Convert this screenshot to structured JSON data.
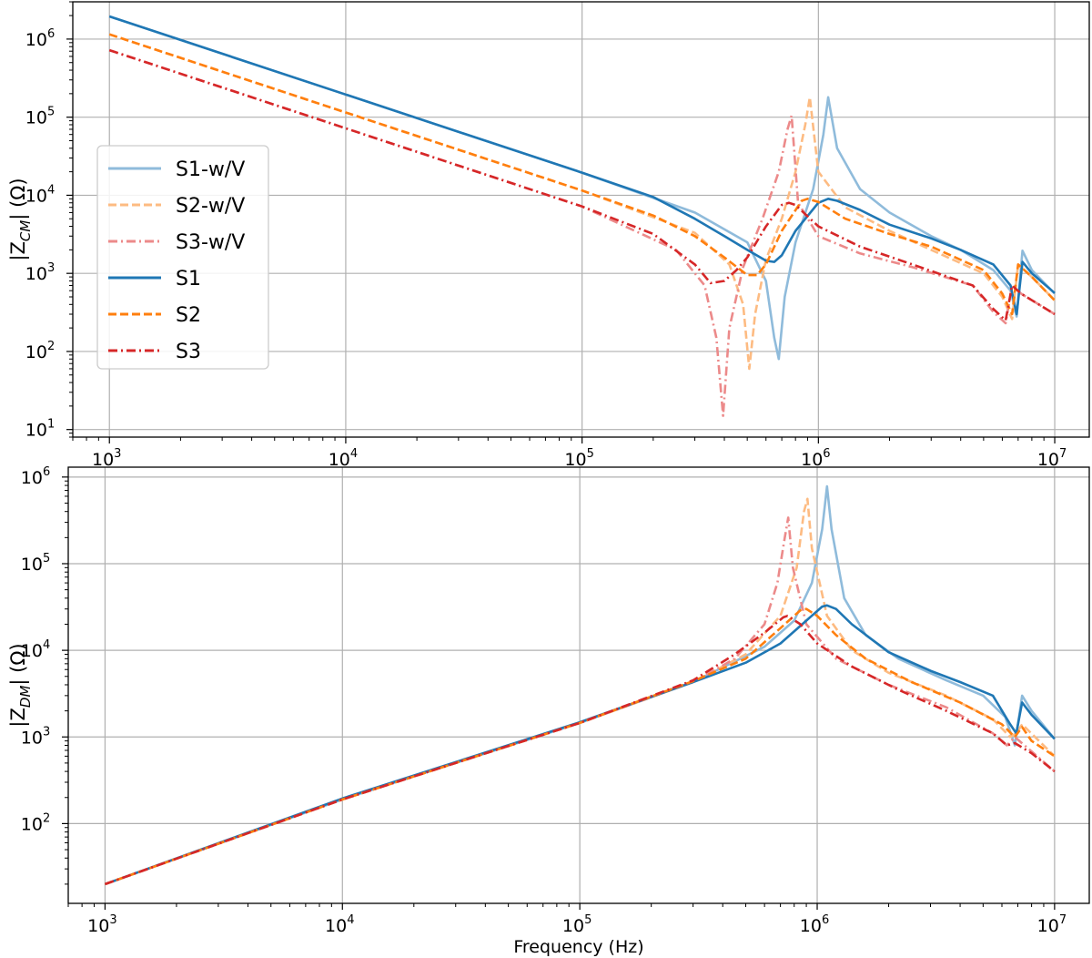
{
  "chart_data": [
    {
      "type": "line",
      "panel": "top",
      "ylabel_main": "|Z",
      "ylabel_sub": "CM",
      "ylabel_tail": "| (Ω)",
      "xlabel": "",
      "x_scale": "log",
      "y_scale": "log",
      "xlim": [
        700,
        14000000
      ],
      "ylim": [
        8,
        3000000
      ],
      "xticks": [
        {
          "value": 1000,
          "base": "10",
          "exp": "3"
        },
        {
          "value": 10000,
          "base": "10",
          "exp": "4"
        },
        {
          "value": 100000,
          "base": "10",
          "exp": "5"
        },
        {
          "value": 1000000,
          "base": "10",
          "exp": "6"
        },
        {
          "value": 10000000,
          "base": "10",
          "exp": "7"
        }
      ],
      "yticks": [
        {
          "value": 10,
          "base": "10",
          "exp": "1"
        },
        {
          "value": 100,
          "base": "10",
          "exp": "2"
        },
        {
          "value": 1000,
          "base": "10",
          "exp": "3"
        },
        {
          "value": 10000,
          "base": "10",
          "exp": "4"
        },
        {
          "value": 100000,
          "base": "10",
          "exp": "5"
        },
        {
          "value": 1000000,
          "base": "10",
          "exp": "6"
        }
      ],
      "grid": true,
      "legend_location": "center-left",
      "series": [
        {
          "name": "S1-w/V",
          "color": "#8fbbdb",
          "dash": "solid",
          "x": [
            1000,
            10000,
            100000,
            300000,
            500000,
            600000,
            650000,
            680000,
            720000,
            800000,
            950000,
            1050000,
            1100000,
            1200000,
            1500000,
            2000000,
            3000000,
            4000000,
            5500000,
            6500000,
            6900000,
            7300000,
            8000000,
            10000000
          ],
          "y": [
            1950000,
            195000,
            19500,
            6000,
            2500,
            800,
            150,
            80,
            500,
            2500,
            12000,
            60000,
            180000,
            40000,
            12000,
            6000,
            3000,
            2000,
            1100,
            600,
            280,
            1950,
            1100,
            550
          ]
        },
        {
          "name": "S2-w/V",
          "color": "#fdbb82",
          "dash": "dashed",
          "x": [
            1000,
            10000,
            100000,
            300000,
            420000,
            480000,
            510000,
            540000,
            600000,
            700000,
            800000,
            880000,
            920000,
            1000000,
            1300000,
            2000000,
            3000000,
            5000000,
            6000000,
            6600000,
            7000000,
            8000000,
            10000000
          ],
          "y": [
            1150000,
            115000,
            11500,
            3300,
            1300,
            400,
            60,
            300,
            1500,
            5000,
            20000,
            80000,
            180000,
            20000,
            7000,
            3500,
            2000,
            1000,
            500,
            260,
            1300,
            900,
            450
          ]
        },
        {
          "name": "S3-w/V",
          "color": "#ec8a8a",
          "dash": "dashdot",
          "x": [
            1000,
            10000,
            100000,
            250000,
            330000,
            370000,
            395000,
            420000,
            480000,
            580000,
            680000,
            740000,
            770000,
            820000,
            1000000,
            1500000,
            2500000,
            4500000,
            5500000,
            6200000,
            6600000,
            7200000,
            10000000
          ],
          "y": [
            720000,
            72000,
            7200,
            2000,
            700,
            150,
            15,
            200,
            1200,
            5000,
            20000,
            70000,
            105000,
            8000,
            3000,
            1800,
            1200,
            700,
            320,
            230,
            700,
            550,
            300
          ]
        },
        {
          "name": "S1",
          "color": "#1f77b4",
          "dash": "solid",
          "x": [
            1000,
            10000,
            100000,
            200000,
            300000,
            400000,
            500000,
            600000,
            650000,
            700000,
            800000,
            1000000,
            1100000,
            1200000,
            1500000,
            2000000,
            3000000,
            4000000,
            5500000,
            6500000,
            6900000,
            7300000,
            8000000,
            10000000
          ],
          "y": [
            1950000,
            195000,
            19500,
            9500,
            5000,
            3000,
            2000,
            1450,
            1400,
            1700,
            3500,
            8000,
            9000,
            8500,
            6500,
            4200,
            2800,
            2000,
            1300,
            700,
            300,
            1400,
            1000,
            560
          ]
        },
        {
          "name": "S2",
          "color": "#ff7f0e",
          "dash": "dashed",
          "x": [
            1000,
            10000,
            100000,
            200000,
            300000,
            400000,
            500000,
            550000,
            600000,
            700000,
            850000,
            900000,
            1000000,
            1300000,
            2000000,
            3000000,
            5000000,
            6000000,
            6600000,
            7000000,
            8000000,
            10000000
          ],
          "y": [
            1150000,
            115000,
            11500,
            5500,
            3000,
            1600,
            950,
            950,
            1300,
            3500,
            8500,
            9000,
            8200,
            5000,
            3200,
            2200,
            1100,
            550,
            300,
            1300,
            900,
            450
          ]
        },
        {
          "name": "S3",
          "color": "#d62728",
          "dash": "dashdot",
          "x": [
            1000,
            10000,
            100000,
            200000,
            300000,
            350000,
            400000,
            450000,
            500000,
            600000,
            700000,
            750000,
            800000,
            1000000,
            1500000,
            2500000,
            4500000,
            5500000,
            6200000,
            6600000,
            7200000,
            10000000
          ],
          "y": [
            720000,
            72000,
            7200,
            3200,
            1300,
            750,
            800,
            1100,
            1600,
            4000,
            7500,
            8000,
            7500,
            4000,
            2200,
            1300,
            700,
            350,
            250,
            700,
            550,
            300
          ]
        }
      ]
    },
    {
      "type": "line",
      "panel": "bottom",
      "ylabel_main": "|Z",
      "ylabel_sub": "DM",
      "ylabel_tail": "| (Ω)",
      "xlabel": "Frequency (Hz)",
      "x_scale": "log",
      "y_scale": "log",
      "xlim": [
        700,
        14000000
      ],
      "ylim": [
        12,
        1300000
      ],
      "xticks": [
        {
          "value": 1000,
          "base": "10",
          "exp": "3"
        },
        {
          "value": 10000,
          "base": "10",
          "exp": "4"
        },
        {
          "value": 100000,
          "base": "10",
          "exp": "5"
        },
        {
          "value": 1000000,
          "base": "10",
          "exp": "6"
        },
        {
          "value": 10000000,
          "base": "10",
          "exp": "7"
        }
      ],
      "yticks": [
        {
          "value": 100,
          "base": "10",
          "exp": "2"
        },
        {
          "value": 1000,
          "base": "10",
          "exp": "3"
        },
        {
          "value": 10000,
          "base": "10",
          "exp": "4"
        },
        {
          "value": 100000,
          "base": "10",
          "exp": "5"
        },
        {
          "value": 1000000,
          "base": "10",
          "exp": "6"
        }
      ],
      "grid": true,
      "series": [
        {
          "name": "S1-w/V",
          "color": "#8fbbdb",
          "dash": "solid",
          "x": [
            1000,
            10000,
            100000,
            300000,
            600000,
            800000,
            950000,
            1050000,
            1100000,
            1150000,
            1300000,
            1600000,
            2200000,
            3500000,
            5000000,
            6200000,
            6800000,
            7300000,
            8000000,
            10000000
          ],
          "y": [
            20,
            190,
            1450,
            4300,
            11000,
            22000,
            60000,
            250000,
            780000,
            250000,
            40000,
            15000,
            8000,
            4500,
            3000,
            1700,
            800,
            3000,
            2000,
            950
          ]
        },
        {
          "name": "S2-w/V",
          "color": "#fdbb82",
          "dash": "dashed",
          "x": [
            1000,
            10000,
            100000,
            300000,
            500000,
            700000,
            820000,
            880000,
            910000,
            950000,
            1100000,
            1400000,
            2000000,
            3500000,
            5500000,
            6500000,
            6900000,
            7300000,
            10000000
          ],
          "y": [
            20,
            190,
            1450,
            4300,
            9000,
            25000,
            90000,
            400000,
            560000,
            150000,
            25000,
            10000,
            5500,
            3000,
            1600,
            1000,
            1100,
            1400,
            600
          ]
        },
        {
          "name": "S3-w/V",
          "color": "#ec8a8a",
          "dash": "dashdot",
          "x": [
            1000,
            10000,
            100000,
            300000,
            450000,
            600000,
            680000,
            730000,
            755000,
            790000,
            900000,
            1200000,
            2000000,
            3500000,
            5500000,
            6300000,
            6800000,
            10000000
          ],
          "y": [
            20,
            190,
            1450,
            4300,
            8000,
            20000,
            60000,
            200000,
            340000,
            90000,
            20000,
            8000,
            4000,
            2200,
            1100,
            800,
            1000,
            400
          ]
        },
        {
          "name": "S1",
          "color": "#1f77b4",
          "dash": "solid",
          "x": [
            1000,
            10000,
            100000,
            300000,
            500000,
            700000,
            900000,
            1050000,
            1100000,
            1200000,
            1400000,
            2000000,
            3000000,
            4000000,
            5500000,
            6500000,
            6900000,
            7300000,
            8000000,
            10000000
          ],
          "y": [
            20,
            195,
            1480,
            4300,
            7200,
            12000,
            22000,
            32000,
            33000,
            30000,
            20000,
            9500,
            5800,
            4300,
            3000,
            1400,
            1100,
            2500,
            1800,
            950
          ]
        },
        {
          "name": "S2",
          "color": "#ff7f0e",
          "dash": "dashed",
          "x": [
            1000,
            10000,
            100000,
            300000,
            500000,
            700000,
            850000,
            900000,
            1000000,
            1200000,
            1600000,
            2500000,
            4000000,
            6000000,
            6800000,
            7300000,
            8000000,
            10000000
          ],
          "y": [
            20,
            190,
            1450,
            4400,
            8000,
            18000,
            29000,
            30000,
            25000,
            15000,
            8000,
            4300,
            2500,
            1400,
            1000,
            1300,
            900,
            600
          ]
        },
        {
          "name": "S3",
          "color": "#d62728",
          "dash": "dashdot",
          "x": [
            1000,
            10000,
            100000,
            300000,
            450000,
            600000,
            720000,
            750000,
            850000,
            1000000,
            1400000,
            2200000,
            3500000,
            5500000,
            6300000,
            6800000,
            8000000,
            10000000
          ],
          "y": [
            20,
            190,
            1450,
            4500,
            9000,
            16000,
            24000,
            25000,
            20000,
            12000,
            6500,
            3500,
            2000,
            1100,
            800,
            850,
            650,
            400
          ]
        }
      ]
    }
  ]
}
